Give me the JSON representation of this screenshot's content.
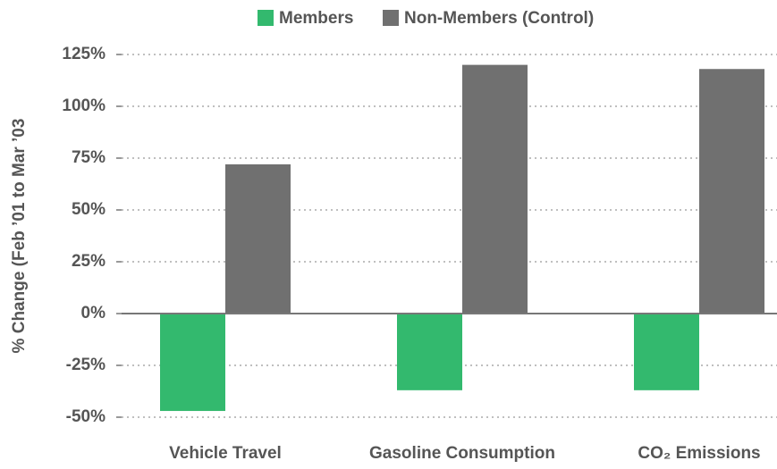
{
  "chart_data": {
    "type": "bar",
    "y_label": "% Change (Feb ’01 to Mar ’03",
    "categories": [
      "Vehicle Travel",
      "Gasoline Consumption",
      "CO₂ Emissions"
    ],
    "series": [
      {
        "name": "Members",
        "color": "#33b96e",
        "values": [
          -47,
          -37,
          -37
        ]
      },
      {
        "name": "Non-Members (Control)",
        "color": "#707070",
        "values": [
          72,
          120,
          118
        ]
      }
    ],
    "ylim": [
      -50,
      125
    ],
    "yticks": [
      {
        "value": -50,
        "label": "-50%"
      },
      {
        "value": -25,
        "label": "-25%"
      },
      {
        "value": 0,
        "label": "0%"
      },
      {
        "value": 25,
        "label": "25%"
      },
      {
        "value": 50,
        "label": "50%"
      },
      {
        "value": 75,
        "label": "75%"
      },
      {
        "value": 100,
        "label": "100%"
      },
      {
        "value": 125,
        "label": "125%"
      }
    ],
    "grid": true
  }
}
